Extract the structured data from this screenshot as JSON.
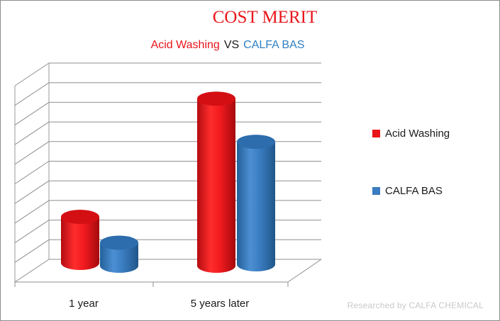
{
  "chart_data": {
    "type": "bar",
    "title": "COST MERIT",
    "subtitle": {
      "series_a": "Acid Washing",
      "vs": "VS",
      "series_b": "CALFA BAS"
    },
    "categories": [
      "1 year",
      "5 years later"
    ],
    "series": [
      {
        "name": "Acid Washing",
        "color": "#e8151b",
        "values": [
          2,
          9
        ]
      },
      {
        "name": "CALFA BAS",
        "color": "#2f7fc1",
        "values": [
          1,
          6.6
        ]
      }
    ],
    "ylim": [
      0,
      10
    ],
    "grid": true,
    "projection": "3d-cylinder",
    "legend_position": "right",
    "xlabel": "",
    "ylabel": ""
  },
  "footer": {
    "credit": "Researched by CALFA CHEMICAL"
  }
}
